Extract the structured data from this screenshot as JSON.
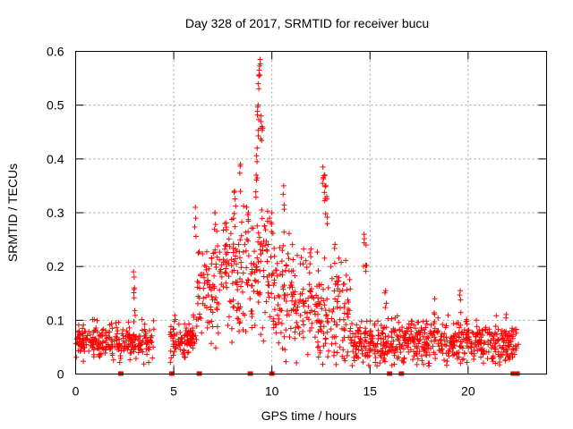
{
  "chart_data": {
    "type": "scatter",
    "title": "Day 328 of 2017, SRMTID for receiver bucu",
    "xlabel": "GPS time / hours",
    "ylabel": "SRMTID / TECUs",
    "xlim": [
      0,
      24
    ],
    "ylim": [
      0,
      0.6
    ],
    "xticks": [
      0,
      5,
      10,
      15,
      20
    ],
    "xtick_labels": [
      "0",
      "5",
      "10",
      "15",
      "20"
    ],
    "yticks": [
      0,
      0.1,
      0.2,
      0.3,
      0.4,
      0.5,
      0.6
    ],
    "ytick_labels": [
      "0",
      "0.1",
      "0.2",
      "0.3",
      "0.4",
      "0.5",
      "0.6"
    ],
    "grid": true,
    "marker": "plus",
    "marker_color": "#ff0000",
    "segments": [
      {
        "start": 0.0,
        "end": 4.0,
        "base": 0.06,
        "spread": 0.035
      },
      {
        "start": 4.8,
        "end": 6.2,
        "base": 0.065,
        "spread": 0.035
      },
      {
        "start": 6.2,
        "end": 7.0,
        "base": 0.15,
        "spread": 0.1
      },
      {
        "start": 7.0,
        "end": 8.8,
        "base": 0.19,
        "spread": 0.12
      },
      {
        "start": 8.8,
        "end": 10.0,
        "base": 0.2,
        "spread": 0.13
      },
      {
        "start": 10.0,
        "end": 12.0,
        "base": 0.14,
        "spread": 0.1
      },
      {
        "start": 12.0,
        "end": 14.0,
        "base": 0.12,
        "spread": 0.1
      },
      {
        "start": 14.0,
        "end": 22.6,
        "base": 0.06,
        "spread": 0.04
      }
    ],
    "peaks": [
      {
        "x": 2.95,
        "y": 0.19
      },
      {
        "x": 3.0,
        "y": 0.16
      },
      {
        "x": 6.0,
        "y": 0.11
      },
      {
        "x": 6.1,
        "y": 0.31
      },
      {
        "x": 7.1,
        "y": 0.3
      },
      {
        "x": 7.6,
        "y": 0.28
      },
      {
        "x": 8.1,
        "y": 0.34
      },
      {
        "x": 8.4,
        "y": 0.39
      },
      {
        "x": 8.8,
        "y": 0.3
      },
      {
        "x": 9.2,
        "y": 0.37
      },
      {
        "x": 9.25,
        "y": 0.42
      },
      {
        "x": 9.3,
        "y": 0.5
      },
      {
        "x": 9.3,
        "y": 0.54
      },
      {
        "x": 9.35,
        "y": 0.565
      },
      {
        "x": 9.4,
        "y": 0.585
      },
      {
        "x": 9.45,
        "y": 0.48
      },
      {
        "x": 9.5,
        "y": 0.46
      },
      {
        "x": 10.0,
        "y": 0.3
      },
      {
        "x": 10.6,
        "y": 0.35
      },
      {
        "x": 12.6,
        "y": 0.385
      },
      {
        "x": 12.7,
        "y": 0.37
      },
      {
        "x": 12.75,
        "y": 0.35
      },
      {
        "x": 12.8,
        "y": 0.33
      },
      {
        "x": 14.7,
        "y": 0.26
      },
      {
        "x": 14.8,
        "y": 0.24
      },
      {
        "x": 15.8,
        "y": 0.155
      },
      {
        "x": 18.3,
        "y": 0.14
      },
      {
        "x": 19.6,
        "y": 0.155
      },
      {
        "x": 18.0,
        "y": 0.015
      }
    ],
    "axis_markers_x": [
      2.3,
      4.9,
      6.3,
      8.9,
      10.0,
      16.0,
      16.6,
      22.3,
      22.5
    ]
  }
}
